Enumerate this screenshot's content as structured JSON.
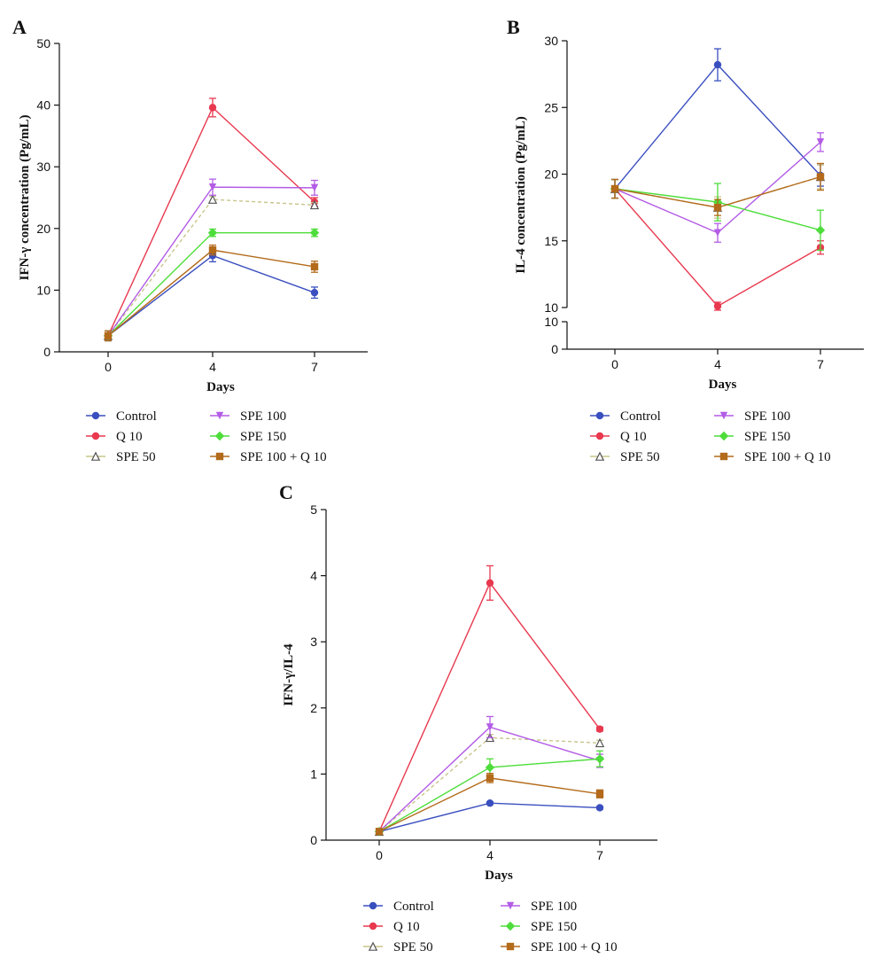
{
  "chart_data": [
    {
      "panel": "A",
      "type": "line",
      "xlabel": "Days",
      "ylabel": "IFN-γ concentration (Pg/mL)",
      "x": [
        0,
        4,
        7
      ],
      "xticks": [
        "0",
        "4",
        "7"
      ],
      "ylim": [
        0,
        50
      ],
      "yticks": [
        0,
        10,
        20,
        30,
        40,
        50
      ],
      "series": [
        {
          "name": "Control",
          "values": [
            2.6,
            15.6,
            9.6
          ],
          "err": [
            0.8,
            1.0,
            0.9
          ]
        },
        {
          "name": "Q 10",
          "values": [
            2.6,
            39.6,
            24.3
          ],
          "err": [
            0.8,
            1.5,
            0.7
          ]
        },
        {
          "name": "SPE 50",
          "values": [
            2.6,
            24.7,
            23.8
          ],
          "err": [
            0.8,
            0.5,
            0.4
          ]
        },
        {
          "name": "SPE 100",
          "values": [
            2.6,
            26.7,
            26.6
          ],
          "err": [
            0.8,
            1.3,
            1.2
          ]
        },
        {
          "name": "SPE 150",
          "values": [
            2.6,
            19.3,
            19.3
          ],
          "err": [
            0.8,
            0.6,
            0.6
          ]
        },
        {
          "name": "SPE 100 + Q 10",
          "values": [
            2.6,
            16.5,
            13.8
          ],
          "err": [
            0.8,
            0.8,
            0.9
          ]
        }
      ]
    },
    {
      "panel": "B",
      "type": "line",
      "xlabel": "Days",
      "ylabel": "IL-4 concentration (Pg/mL)",
      "x": [
        0,
        4,
        7
      ],
      "xticks": [
        "0",
        "4",
        "7"
      ],
      "ylim": [
        10,
        30
      ],
      "yticks": [
        10,
        15,
        20,
        25,
        30
      ],
      "broken_axis": true,
      "lower_segment_yticks": [
        0,
        10
      ],
      "series": [
        {
          "name": "Control",
          "values": [
            18.9,
            28.2,
            19.9
          ],
          "err": [
            0.7,
            1.2,
            0.8
          ]
        },
        {
          "name": "Q 10",
          "values": [
            18.9,
            10.1,
            14.5
          ],
          "err": [
            0.7,
            0.3,
            0.5
          ]
        },
        {
          "name": "SPE 50",
          "values": [
            18.9,
            17.5,
            19.8
          ],
          "err": [
            0.7,
            0.8,
            0.9
          ]
        },
        {
          "name": "SPE 100",
          "values": [
            18.9,
            15.6,
            22.4
          ],
          "err": [
            0.7,
            0.7,
            0.7
          ]
        },
        {
          "name": "SPE 150",
          "values": [
            18.9,
            17.9,
            15.8
          ],
          "err": [
            0.7,
            1.4,
            1.5
          ]
        },
        {
          "name": "SPE 100 + Q 10",
          "values": [
            18.9,
            17.5,
            19.8
          ],
          "err": [
            0.7,
            0.6,
            1.0
          ]
        }
      ]
    },
    {
      "panel": "C",
      "type": "line",
      "xlabel": "Days",
      "ylabel": "IFN-γ/IL-4",
      "x": [
        0,
        4,
        7
      ],
      "xticks": [
        "0",
        "4",
        "7"
      ],
      "ylim": [
        0,
        5
      ],
      "yticks": [
        0,
        1,
        2,
        3,
        4,
        5
      ],
      "series": [
        {
          "name": "Control",
          "values": [
            0.13,
            0.56,
            0.49
          ],
          "err": [
            0.02,
            0.02,
            0.02
          ]
        },
        {
          "name": "Q 10",
          "values": [
            0.13,
            3.89,
            1.68
          ],
          "err": [
            0.02,
            0.26,
            0.03
          ]
        },
        {
          "name": "SPE 50",
          "values": [
            0.13,
            1.55,
            1.47
          ],
          "err": [
            0.02,
            0.05,
            0.04
          ]
        },
        {
          "name": "SPE 100",
          "values": [
            0.13,
            1.71,
            1.2
          ],
          "err": [
            0.02,
            0.16,
            0.1
          ]
        },
        {
          "name": "SPE 150",
          "values": [
            0.13,
            1.1,
            1.23
          ],
          "err": [
            0.02,
            0.13,
            0.12
          ]
        },
        {
          "name": "SPE 100 + Q 10",
          "values": [
            0.13,
            0.94,
            0.7
          ],
          "err": [
            0.02,
            0.07,
            0.06
          ]
        }
      ]
    }
  ],
  "legend": [
    {
      "name": "Control",
      "color": "#3a4fbf",
      "marker": "circle"
    },
    {
      "name": "Q 10",
      "color": "#e8394f",
      "marker": "circle"
    },
    {
      "name": "SPE 50",
      "color": "#c8c58a",
      "marker": "triangle-up-open"
    },
    {
      "name": "SPE 100",
      "color": "#b35ce6",
      "marker": "triangle-down"
    },
    {
      "name": "SPE 150",
      "color": "#4ddd3a",
      "marker": "diamond"
    },
    {
      "name": "SPE 100 + Q 10",
      "color": "#b36a1a",
      "marker": "square"
    }
  ]
}
